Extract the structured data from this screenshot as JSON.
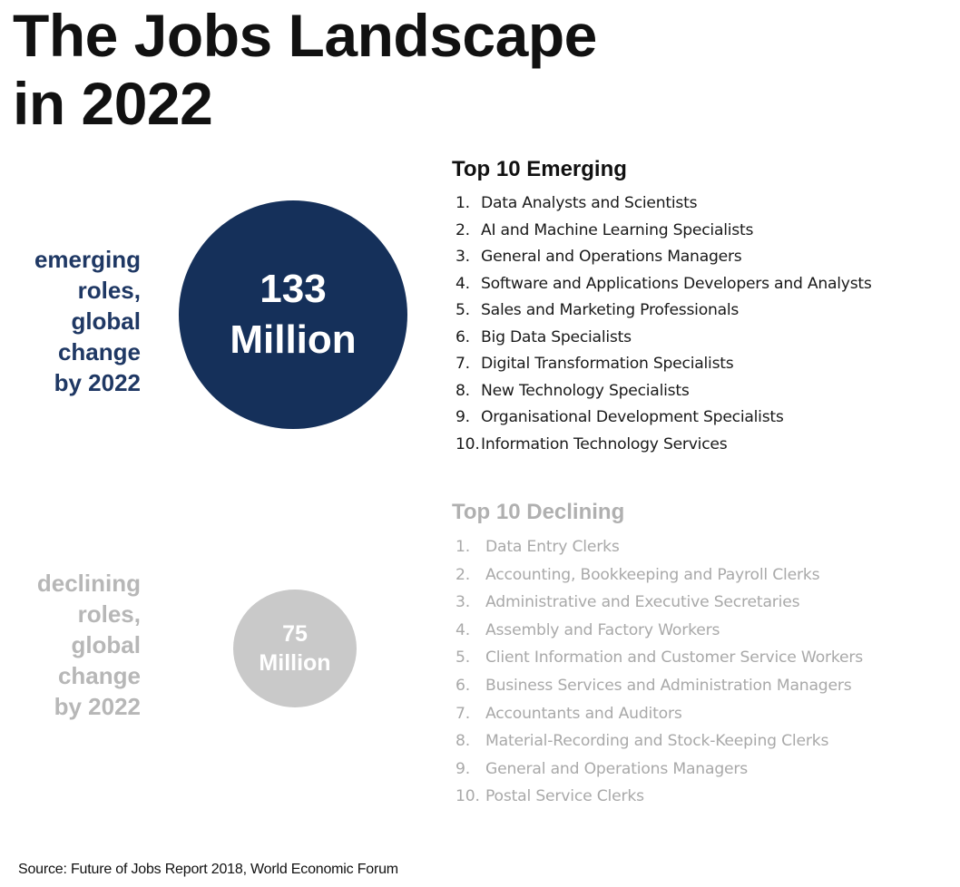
{
  "title": {
    "line1": "The Jobs Landscape",
    "line2": "in 2022"
  },
  "emerging": {
    "label_lines": [
      "emerging",
      "roles,",
      "global",
      "change",
      "by 2022"
    ],
    "circle_value": "133",
    "circle_unit": "Million",
    "heading": "Top 10 Emerging",
    "items": [
      {
        "num": "1.",
        "text": "Data Analysts and Scientists"
      },
      {
        "num": "2.",
        "text": "AI and Machine Learning Specialists"
      },
      {
        "num": "3.",
        "text": "General and Operations Managers"
      },
      {
        "num": "4.",
        "text": "Software and Applications Developers and Analysts"
      },
      {
        "num": "5.",
        "text": "Sales and Marketing Professionals"
      },
      {
        "num": "6.",
        "text": "Big Data Specialists"
      },
      {
        "num": "7.",
        "text": "Digital Transformation Specialists"
      },
      {
        "num": "8.",
        "text": "New Technology Specialists"
      },
      {
        "num": "9.",
        "text": "Organisational Development Specialists"
      },
      {
        "num": "10.",
        "text": "Information Technology Services"
      }
    ],
    "color": "#15305a"
  },
  "declining": {
    "label_lines": [
      "declining",
      "roles,",
      "global",
      "change",
      "by 2022"
    ],
    "circle_value": "75",
    "circle_unit": "Million",
    "heading": "Top 10 Declining",
    "items": [
      {
        "num": "1.",
        "text": "Data Entry Clerks"
      },
      {
        "num": "2.",
        "text": "Accounting,  Bookkeeping and Payroll Clerks"
      },
      {
        "num": "3.",
        "text": "Administrative and Executive Secretaries"
      },
      {
        "num": "4.",
        "text": "Assembly and Factory Workers"
      },
      {
        "num": "5.",
        "text": "Client Information and Customer Service Workers"
      },
      {
        "num": "6.",
        "text": "Business Services and Administration Managers"
      },
      {
        "num": "7.",
        "text": "Accountants and Auditors"
      },
      {
        "num": "8.",
        "text": "Material-Recording and Stock-Keeping Clerks"
      },
      {
        "num": "9.",
        "text": "General and Operations Managers"
      },
      {
        "num": "10.",
        "text": "Postal Service Clerks"
      }
    ],
    "color": "#c9c9c9"
  },
  "source": "Source: Future of Jobs Report 2018, World Economic Forum"
}
